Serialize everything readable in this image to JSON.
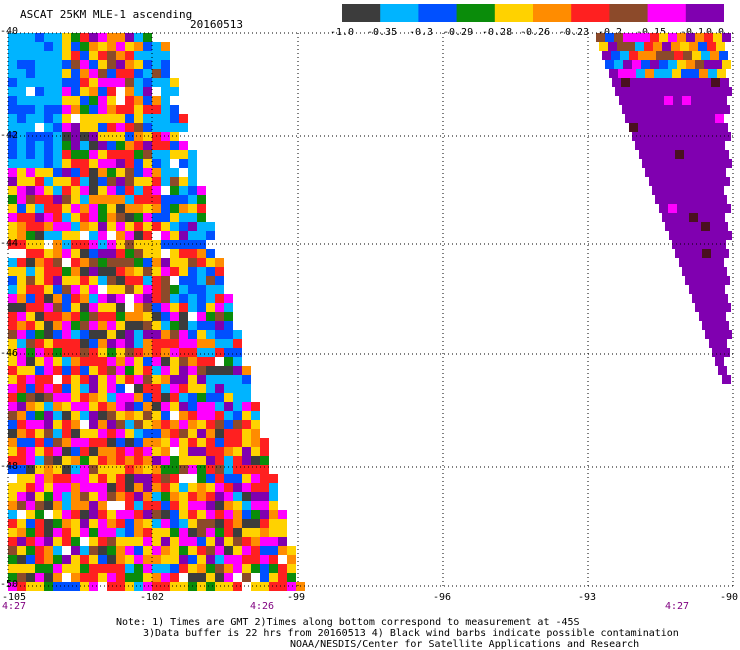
{
  "header": {
    "title": "ASCAT 25KM MLE-1 ascending",
    "date": "20160513"
  },
  "colorbar": {
    "labels": [
      "-1.0",
      "-0.35",
      "-0.3",
      "-0.29",
      "-0.28",
      "-0.26",
      "-0.23",
      "-0.2",
      "-0.15",
      "-0.1",
      "0.0"
    ],
    "colors": [
      "#3c3c3c",
      "#00b4ff",
      "#0050ff",
      "#0a8c0a",
      "#ffd200",
      "#ff8c00",
      "#ff2020",
      "#8c4a2a",
      "#ff00ff",
      "#8000b0"
    ]
  },
  "axes": {
    "lat_labels": [
      "-40",
      "-42",
      "-44",
      "-46",
      "-48",
      "-50"
    ],
    "lon_labels": [
      "-105",
      "-102",
      "-99",
      "-96",
      "-93",
      "-90"
    ]
  },
  "times": {
    "left": "4:27",
    "mid": "4:26",
    "right": "4:27"
  },
  "notes": {
    "line1": "Note: 1) Times are GMT 2)Times along bottom correspond to measurement at -45S",
    "line2": "3)Data buffer is 22 hrs from 20160513 4) Black wind barbs indicate possible contamination",
    "line3": "NOAA/NESDIS/Center for Satellite Applications and Research"
  }
}
